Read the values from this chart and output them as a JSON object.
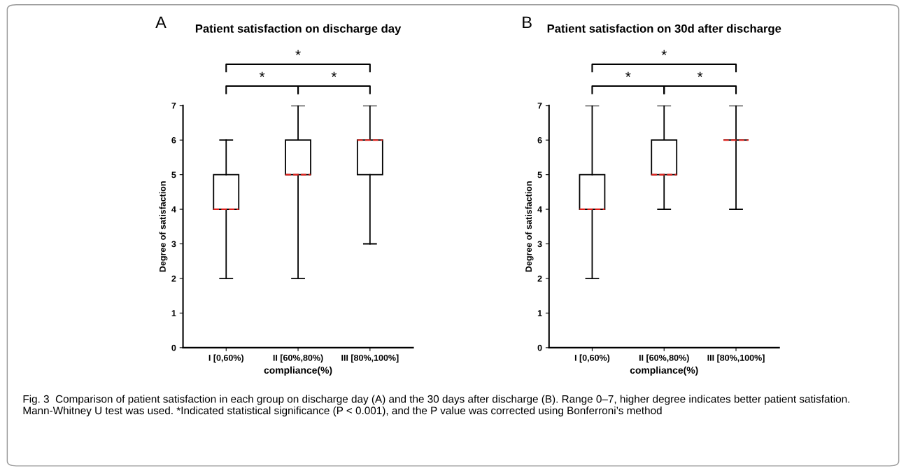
{
  "chart_data": [
    {
      "type": "box",
      "title": "Patient satisfaction on discharge day",
      "xlabel": "compliance(%)",
      "ylabel": "Degree of satisfaction",
      "categories": [
        "I [0,60%)",
        "II [60%,80%)",
        "III [80%,100%]"
      ],
      "boxes": [
        {
          "low": 2,
          "q1": 4,
          "median": 4,
          "q3": 5,
          "high": 6
        },
        {
          "low": 2,
          "q1": 5,
          "median": 5,
          "q3": 6,
          "high": 7
        },
        {
          "low": 3,
          "q1": 5,
          "median": 6,
          "q3": 6,
          "high": 7
        }
      ],
      "ylim": [
        0,
        7
      ],
      "yticks": [
        0,
        1,
        2,
        3,
        4,
        5,
        6,
        7
      ],
      "grid": false,
      "annotations": [
        "A",
        "*",
        "*",
        "*",
        "Fig. 3  Comparison of patient satisfaction in each group on discharge day (A) and the 30 days after discharge (B). Range 0–7, higher degree indicates better patient satisfation. Mann-Whitney U test was used. *Indicated statistical significance (P < 0.001), and the P value was corrected using Bonferroni’s method"
      ]
    },
    {
      "type": "box",
      "title": "Patient satisfaction on 30d after discharge",
      "xlabel": "compliance(%)",
      "ylabel": "Degree of satisfaction",
      "categories": [
        "I [0,60%)",
        "II [60%,80%)",
        "III [80%,100%]"
      ],
      "boxes": [
        {
          "low": 2,
          "q1": 4,
          "median": 4,
          "q3": 5,
          "high": 7
        },
        {
          "low": 4,
          "q1": 5,
          "median": 5,
          "q3": 6,
          "high": 7
        },
        {
          "low": 4,
          "q1": 6,
          "median": 6,
          "q3": 6,
          "high": 7
        }
      ],
      "ylim": [
        0,
        7
      ],
      "yticks": [
        0,
        1,
        2,
        3,
        4,
        5,
        6,
        7
      ],
      "grid": false,
      "annotations": [
        "B",
        "*",
        "*",
        "*"
      ]
    }
  ]
}
